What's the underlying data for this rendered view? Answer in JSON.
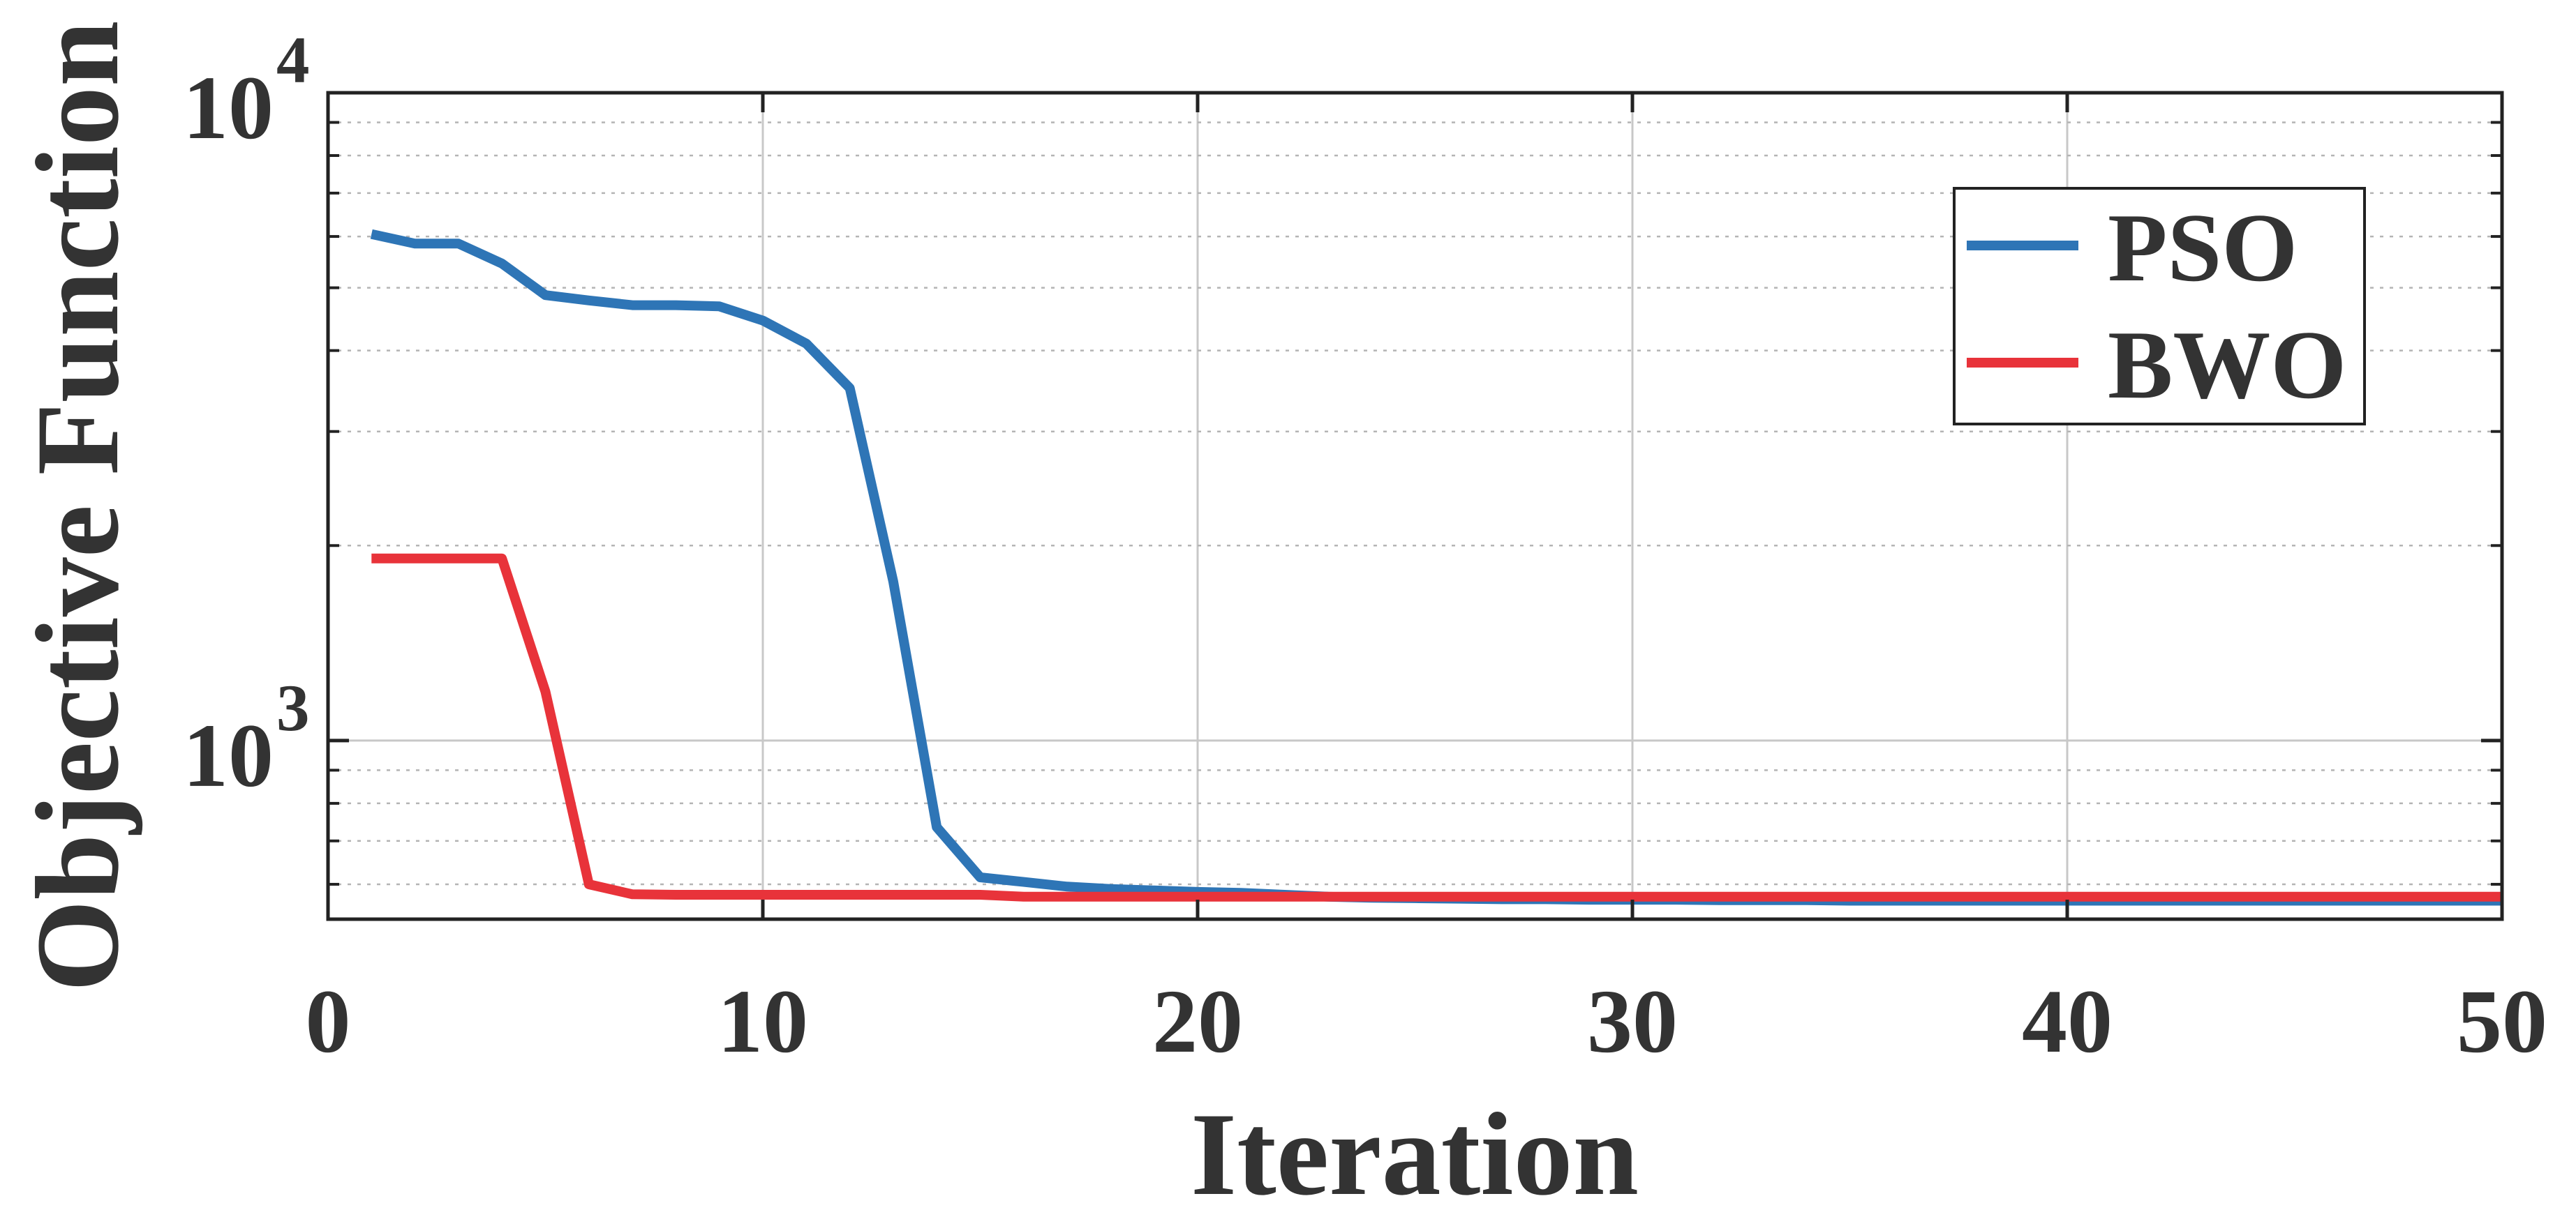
{
  "chart_data": {
    "type": "line",
    "title": "",
    "xlabel": "Iteration",
    "ylabel": "Objective Function",
    "xlim": [
      0,
      50
    ],
    "ylim": [
      530,
      10000
    ],
    "yscale": "log",
    "grid": true,
    "legend_position": "top-right",
    "x_ticks": [
      "0",
      "10",
      "20",
      "30",
      "40",
      "50"
    ],
    "y_ticks": [
      {
        "value": 1000,
        "base": "10",
        "exp": "3"
      },
      {
        "value": 10000,
        "base": "10",
        "exp": "4"
      }
    ],
    "series": [
      {
        "name": "PSO",
        "color": "#2E75B6",
        "x": [
          1,
          2,
          3,
          4,
          5,
          6,
          7,
          8,
          9,
          10,
          11,
          12,
          13,
          14,
          15,
          16,
          17,
          18,
          19,
          20,
          21,
          22,
          23,
          24,
          25,
          26,
          27,
          28,
          29,
          30,
          31,
          32,
          33,
          34,
          35,
          36,
          37,
          38,
          39,
          40,
          41,
          42,
          43,
          44,
          45,
          46,
          47,
          48,
          49,
          50
        ],
        "y": [
          6050,
          5850,
          5850,
          5450,
          4870,
          4780,
          4700,
          4700,
          4680,
          4450,
          4100,
          3500,
          1760,
          735,
          615,
          605,
          595,
          590,
          587,
          584,
          582,
          578,
          574,
          572,
          571,
          570,
          569,
          569,
          568,
          568,
          568,
          567,
          567,
          567,
          566,
          566,
          566,
          566,
          566,
          566,
          566,
          566,
          566,
          566,
          566,
          566,
          566,
          566,
          566,
          566
        ]
      },
      {
        "name": "BWO",
        "color": "#E8333A",
        "x": [
          1,
          2,
          3,
          4,
          5,
          6,
          7,
          8,
          9,
          10,
          11,
          12,
          13,
          14,
          15,
          16,
          17,
          18,
          19,
          20,
          21,
          22,
          23,
          24,
          25,
          26,
          27,
          28,
          29,
          30,
          31,
          32,
          33,
          34,
          35,
          36,
          37,
          38,
          39,
          40,
          41,
          42,
          43,
          44,
          45,
          46,
          47,
          48,
          49,
          50
        ],
        "y": [
          1910,
          1910,
          1910,
          1910,
          1190,
          600,
          579,
          578,
          578,
          578,
          578,
          578,
          578,
          578,
          578,
          574,
          574,
          574,
          574,
          574,
          574,
          574,
          574,
          574,
          574,
          574,
          574,
          574,
          574,
          574,
          574,
          574,
          574,
          574,
          574,
          574,
          574,
          574,
          574,
          574,
          574,
          574,
          574,
          574,
          574,
          574,
          574,
          574,
          574,
          574
        ]
      }
    ]
  }
}
